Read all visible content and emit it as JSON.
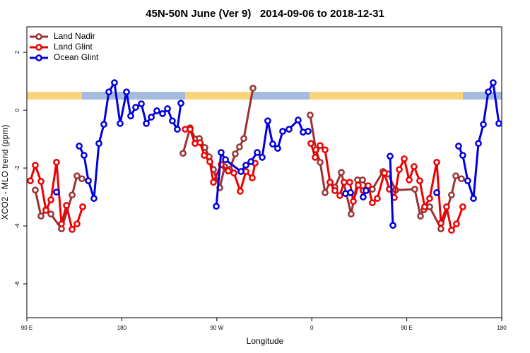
{
  "chart_data": {
    "type": "line",
    "title": "45N-50N June (Ver 9)   2014-09-06 to 2018-12-31",
    "x_label": "Longitude",
    "y_label": "XCO2 - MLO trend (ppm)",
    "xlim": [
      90,
      540
    ],
    "ylim": [
      -7.17,
      2.88
    ],
    "xticks": [
      {
        "value": 90,
        "label": "90 E"
      },
      180,
      {
        "value": 270,
        "label": "90 W"
      },
      {
        "value": 360,
        "label": "0"
      },
      {
        "value": 450,
        "label": "90 E"
      },
      {
        "value": 540,
        "label": "180"
      }
    ],
    "yticks": [
      -6,
      -4,
      -2,
      0,
      2
    ],
    "grid": false,
    "legend": "top-left",
    "series": [
      {
        "name": "Land Nadir",
        "color": "#993333",
        "x": [
          98.0,
          103.4,
          108.1,
          112.8,
          122.8,
          132.9,
          137.5,
          142.2,
          null,
          238.0,
          244.7,
          250.0,
          253.4,
          258.7,
          262.8,
          266.8,
          272.8,
          277.5,
          282.2,
          287.5,
          291.5,
          295.6,
          304.3,
          null,
          358.5,
          363.9,
          367.9,
          372.6,
          377.3,
          381.9,
          388.0,
          397.3,
          403.4,
          408.1,
          412.7,
          417.4,
          427.5,
          432.2,
          439.5,
          457.6,
          463.0,
          466.3,
          471.7,
          482.4,
          492.4,
          496.5,
          501.8
        ],
        "values": [
          -2.76,
          -3.66,
          -3.44,
          -3.59,
          -4.1,
          -2.93,
          -2.27,
          -2.37,
          null,
          -1.49,
          -0.61,
          -1.0,
          -0.98,
          -1.29,
          -1.61,
          -2.05,
          -2.68,
          -1.95,
          -2.05,
          -1.51,
          -1.27,
          -0.98,
          0.76,
          null,
          -0.17,
          -1.37,
          -1.8,
          -2.85,
          -2.49,
          -2.66,
          -2.15,
          -3.59,
          -2.41,
          -2.41,
          -2.66,
          -2.73,
          -2.12,
          -2.2,
          -2.76,
          -2.73,
          -3.66,
          -3.44,
          -3.34,
          -4.1,
          -2.93,
          -2.27,
          -2.37
        ]
      },
      {
        "name": "Land Glint",
        "color": "#ee0000",
        "x": [
          93.3,
          98.0,
          103.4,
          108.1,
          112.8,
          118.1,
          122.8,
          127.5,
          132.9,
          137.5,
          142.9,
          null,
          240.0,
          244.7,
          249.4,
          254.1,
          258.1,
          263.4,
          266.8,
          274.1,
          280.8,
          286.2,
          292.2,
          297.6,
          303.6,
          306.3,
          null,
          359.2,
          363.2,
          367.9,
          372.6,
          377.3,
          381.9,
          386.6,
          390.6,
          396.0,
          399.4,
          404.0,
          408.7,
          413.4,
          417.4,
          422.1,
          428.8,
          433.5,
          438.2,
          442.9,
          447.6,
          452.3,
          456.9,
          462.3,
          467.0,
          471.7,
          478.4,
          482.4,
          487.7,
          492.4,
          497.1,
          503.1
        ],
        "values": [
          -2.44,
          -1.9,
          -2.46,
          -3.46,
          -3.1,
          -1.8,
          -3.93,
          -3.29,
          -4.12,
          -3.93,
          -3.34,
          null,
          -0.66,
          -0.66,
          -1.15,
          -1.12,
          -1.56,
          -1.78,
          -2.49,
          -1.88,
          -2.1,
          -2.17,
          -2.8,
          -2.12,
          -2.34,
          -1.83,
          null,
          -1.15,
          -1.63,
          -1.22,
          -1.37,
          -2.49,
          -2.78,
          -2.95,
          -2.49,
          -2.49,
          -3.15,
          -2.59,
          -2.78,
          -2.61,
          -3.2,
          -3.05,
          -2.17,
          -2.73,
          -3.02,
          -2.05,
          -1.68,
          -2.41,
          -1.95,
          -2.44,
          -3.34,
          -3.05,
          -1.8,
          -3.9,
          -3.34,
          -4.15,
          -3.93,
          -3.34
        ]
      },
      {
        "name": "Ocean Glint",
        "color": "#0000dd",
        "x": [
          118.1,
          null,
          139.6,
          144.2,
          148.3,
          153.6,
          158.3,
          163.0,
          167.7,
          173.0,
          178.4,
          184.4,
          188.4,
          193.1,
          198.5,
          203.2,
          207.9,
          213.2,
          218.6,
          223.3,
          227.9,
          232.6,
          236.0,
          null,
          269.5,
          274.1,
          278.2,
          292.9,
          297.6,
          302.3,
          308.3,
          313.0,
          318.3,
          323.0,
          327.7,
          332.4,
          338.4,
          347.1,
          351.8,
          356.5,
          null,
          392.0,
          396.7,
          null,
          408.7,
          411.4,
          null,
          434.2,
          436.9,
          null,
          478.4,
          null,
          499.1,
          503.1,
          507.8,
          513.2,
          517.9,
          522.6,
          527.3,
          531.9,
          537.3
        ],
        "values": [
          -2.83,
          null,
          -1.24,
          -1.56,
          -2.44,
          -3.05,
          -1.15,
          -0.49,
          0.63,
          0.95,
          -0.46,
          0.63,
          -0.2,
          0.1,
          0.22,
          -0.46,
          -0.24,
          -0.02,
          -0.12,
          0.05,
          -0.37,
          -0.66,
          0.24,
          null,
          -3.32,
          -1.46,
          -1.71,
          -2.12,
          -1.9,
          -1.78,
          -1.46,
          -1.63,
          -0.37,
          -1.17,
          -1.32,
          -0.73,
          -0.66,
          -0.34,
          -0.76,
          -0.73,
          null,
          -2.88,
          -2.85,
          null,
          -3.0,
          -2.78,
          null,
          -1.59,
          -3.98,
          null,
          -2.85,
          null,
          -1.24,
          -1.56,
          -2.44,
          -3.05,
          -1.15,
          -0.49,
          0.63,
          0.95,
          -0.46
        ]
      }
    ]
  }
}
